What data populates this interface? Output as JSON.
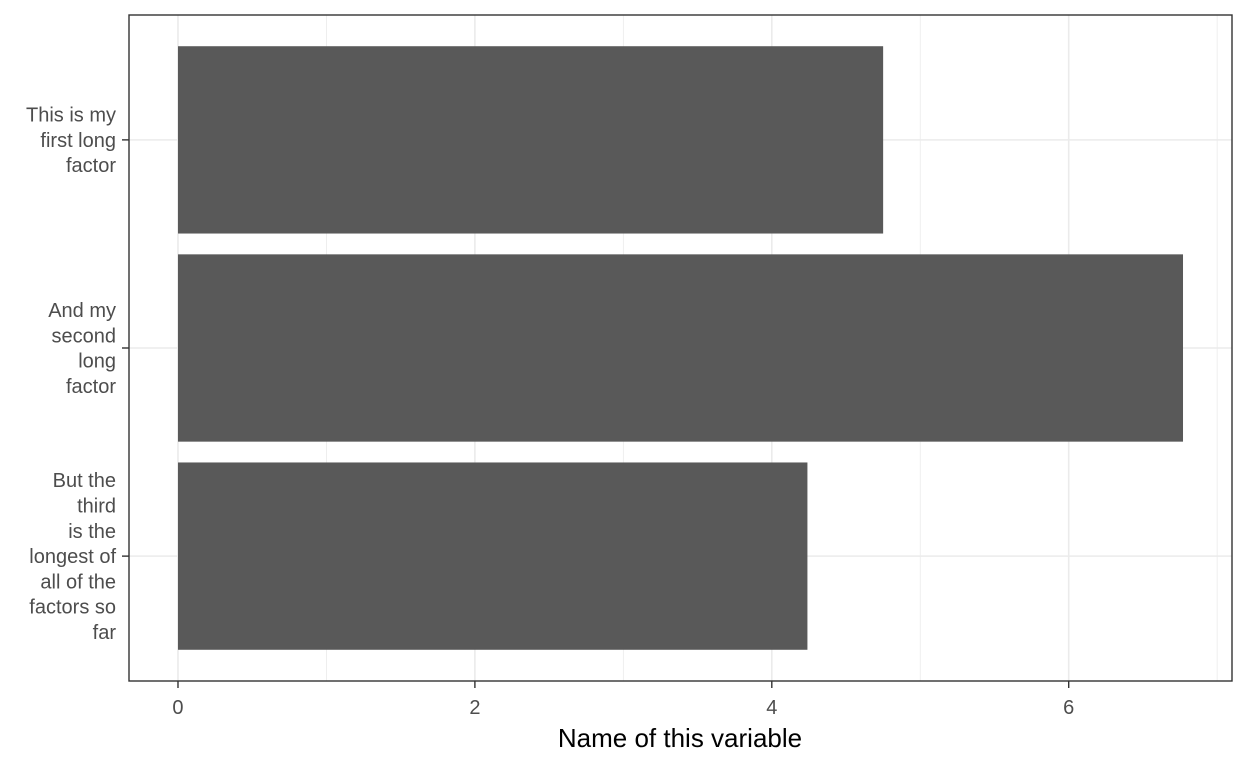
{
  "chart_data": {
    "type": "bar",
    "orientation": "horizontal",
    "categories": [
      [
        "This is my",
        "first long",
        "factor"
      ],
      [
        "And my",
        "second",
        "long",
        "factor"
      ],
      [
        "But the",
        "third",
        "is the",
        "longest of",
        "all of the",
        "factors so",
        "far"
      ]
    ],
    "values": [
      4.75,
      6.77,
      4.24
    ],
    "xlabel": "Name of this variable",
    "ylabel": "",
    "xlim": [
      -0.33,
      7.1
    ],
    "xticks": [
      0,
      2,
      4,
      6
    ],
    "xtick_labels": [
      "0",
      "2",
      "4",
      "6"
    ],
    "grid": true,
    "colors": {
      "bar": "#595959",
      "grid": "#ebebeb",
      "panel_border": "#333333",
      "tick_text": "#4d4d4d"
    }
  }
}
